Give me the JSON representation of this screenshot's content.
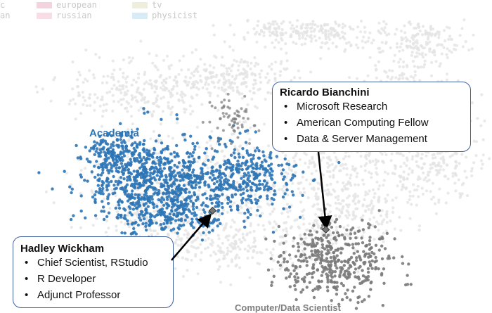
{
  "legend": {
    "items": [
      {
        "label": "european",
        "color": "#f3d3dd"
      },
      {
        "label": "tv",
        "color": "#eeeedd"
      },
      {
        "label": "russian",
        "color": "#f6dde6"
      },
      {
        "label": "physicist",
        "color": "#d9ecf5"
      }
    ],
    "partial_labels": [
      "c",
      "an"
    ]
  },
  "regions": {
    "academia": {
      "label": "Academia",
      "color": "#2e75b6"
    },
    "computer": {
      "label": "Computer/Data Scientist",
      "color": "#808080"
    }
  },
  "callouts": {
    "bianchini": {
      "name": "Ricardo Bianchini",
      "items": [
        "Microsoft Research",
        "American Computing Fellow",
        "Data & Server Management"
      ]
    },
    "wickham": {
      "name": "Hadley Wickham",
      "items": [
        "Chief Scientist, RStudio",
        "R Developer",
        "Adjunct Professor"
      ]
    }
  },
  "colors": {
    "background_points": "#e4e4e4",
    "academia_points": "#2e75b6",
    "computer_points": "#7a7a7a",
    "callout_border": "#3f5f9f",
    "arrow": "#000000"
  }
}
